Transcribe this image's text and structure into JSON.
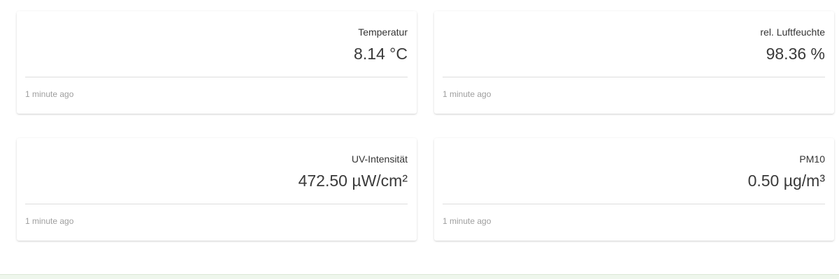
{
  "cards": [
    {
      "title": "Temperatur",
      "value": "8.14 °C",
      "updated": "1 minute ago"
    },
    {
      "title": "rel. Luftfeuchte",
      "value": "98.36 %",
      "updated": "1 minute ago"
    },
    {
      "title": "UV-Intensität",
      "value": "472.50 µW/cm²",
      "updated": "1 minute ago"
    },
    {
      "title": "PM10",
      "value": "0.50 µg/m³",
      "updated": "1 minute ago"
    }
  ],
  "colors": {
    "card_background": "#ffffff",
    "bottom_strip": "#eef6ec"
  }
}
